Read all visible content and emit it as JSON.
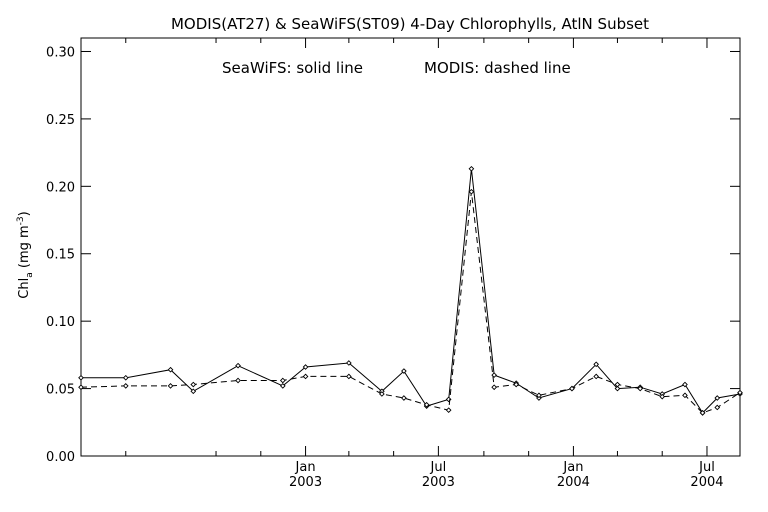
{
  "chart_data": {
    "type": "line",
    "title": "MODIS(AT27) & SeaWiFS(ST09) 4-Day Chlorophylls, AtlN Subset",
    "annotation": {
      "seawifs": "SeaWiFS: solid line",
      "modis": "MODIS: dashed line"
    },
    "ylabel": {
      "prefix": "Chl",
      "subscript": "a",
      "unit_open": " (mg m",
      "exponent": "-3",
      "unit_close": ")"
    },
    "xlabel": "",
    "ylim": [
      0.0,
      0.31
    ],
    "xlim": [
      "2002-03-01",
      "2004-08-15"
    ],
    "y_ticks": [
      0.0,
      0.05,
      0.1,
      0.15,
      0.2,
      0.25,
      0.3
    ],
    "y_tick_labels": [
      "0.00",
      "0.05",
      "0.10",
      "0.15",
      "0.20",
      "0.25",
      "0.30"
    ],
    "x_major_ticks": [
      {
        "date": "2003-01-01",
        "month": "Jan",
        "year": "2003"
      },
      {
        "date": "2003-07-01",
        "month": "Jul",
        "year": "2003"
      },
      {
        "date": "2004-01-01",
        "month": "Jan",
        "year": "2004"
      },
      {
        "date": "2004-07-01",
        "month": "Jul",
        "year": "2004"
      }
    ],
    "x_minor_ticks": [
      "2002-05-01",
      "2002-09-01",
      "2002-11-01",
      "2003-03-01",
      "2003-05-01",
      "2003-09-01",
      "2003-11-01",
      "2004-03-01",
      "2004-05-01"
    ],
    "grid": false,
    "legend": "none",
    "series": [
      {
        "name": "SeaWiFS",
        "line_style": "solid",
        "x": [
          "2002-03-01",
          "2002-05-01",
          "2002-07-01",
          "2002-08-01",
          "2002-10-01",
          "2002-12-01",
          "2003-01-01",
          "2003-03-01",
          "2003-04-15",
          "2003-05-15",
          "2003-06-15",
          "2003-07-15",
          "2003-08-15",
          "2003-09-15",
          "2003-10-15",
          "2003-11-15",
          "2003-12-30",
          "2004-02-01",
          "2004-03-01",
          "2004-04-01",
          "2004-05-01",
          "2004-06-01",
          "2004-06-25",
          "2004-07-15",
          "2004-08-15"
        ],
        "values": [
          0.058,
          0.058,
          0.064,
          0.048,
          0.067,
          0.052,
          0.066,
          0.069,
          0.048,
          0.063,
          0.037,
          0.042,
          0.213,
          0.06,
          0.054,
          0.043,
          0.05,
          0.068,
          0.05,
          0.051,
          0.046,
          0.053,
          0.032,
          0.043,
          0.046
        ]
      },
      {
        "name": "MODIS",
        "line_style": "dashed",
        "x": [
          "2002-03-01",
          "2002-05-01",
          "2002-07-01",
          "2002-08-01",
          "2002-10-01",
          "2002-12-01",
          "2003-01-01",
          "2003-03-01",
          "2003-04-15",
          "2003-05-15",
          "2003-06-15",
          "2003-07-15",
          "2003-08-15",
          "2003-09-15",
          "2003-10-15",
          "2003-11-15",
          "2003-12-30",
          "2004-02-01",
          "2004-03-01",
          "2004-04-01",
          "2004-05-01",
          "2004-06-01",
          "2004-06-25",
          "2004-07-15",
          "2004-08-15"
        ],
        "values": [
          0.051,
          0.052,
          0.052,
          0.053,
          0.056,
          0.056,
          0.059,
          0.059,
          0.046,
          0.043,
          0.038,
          0.034,
          0.196,
          0.051,
          0.053,
          0.045,
          0.05,
          0.059,
          0.053,
          0.05,
          0.044,
          0.045,
          0.032,
          0.036,
          0.047
        ]
      }
    ]
  }
}
